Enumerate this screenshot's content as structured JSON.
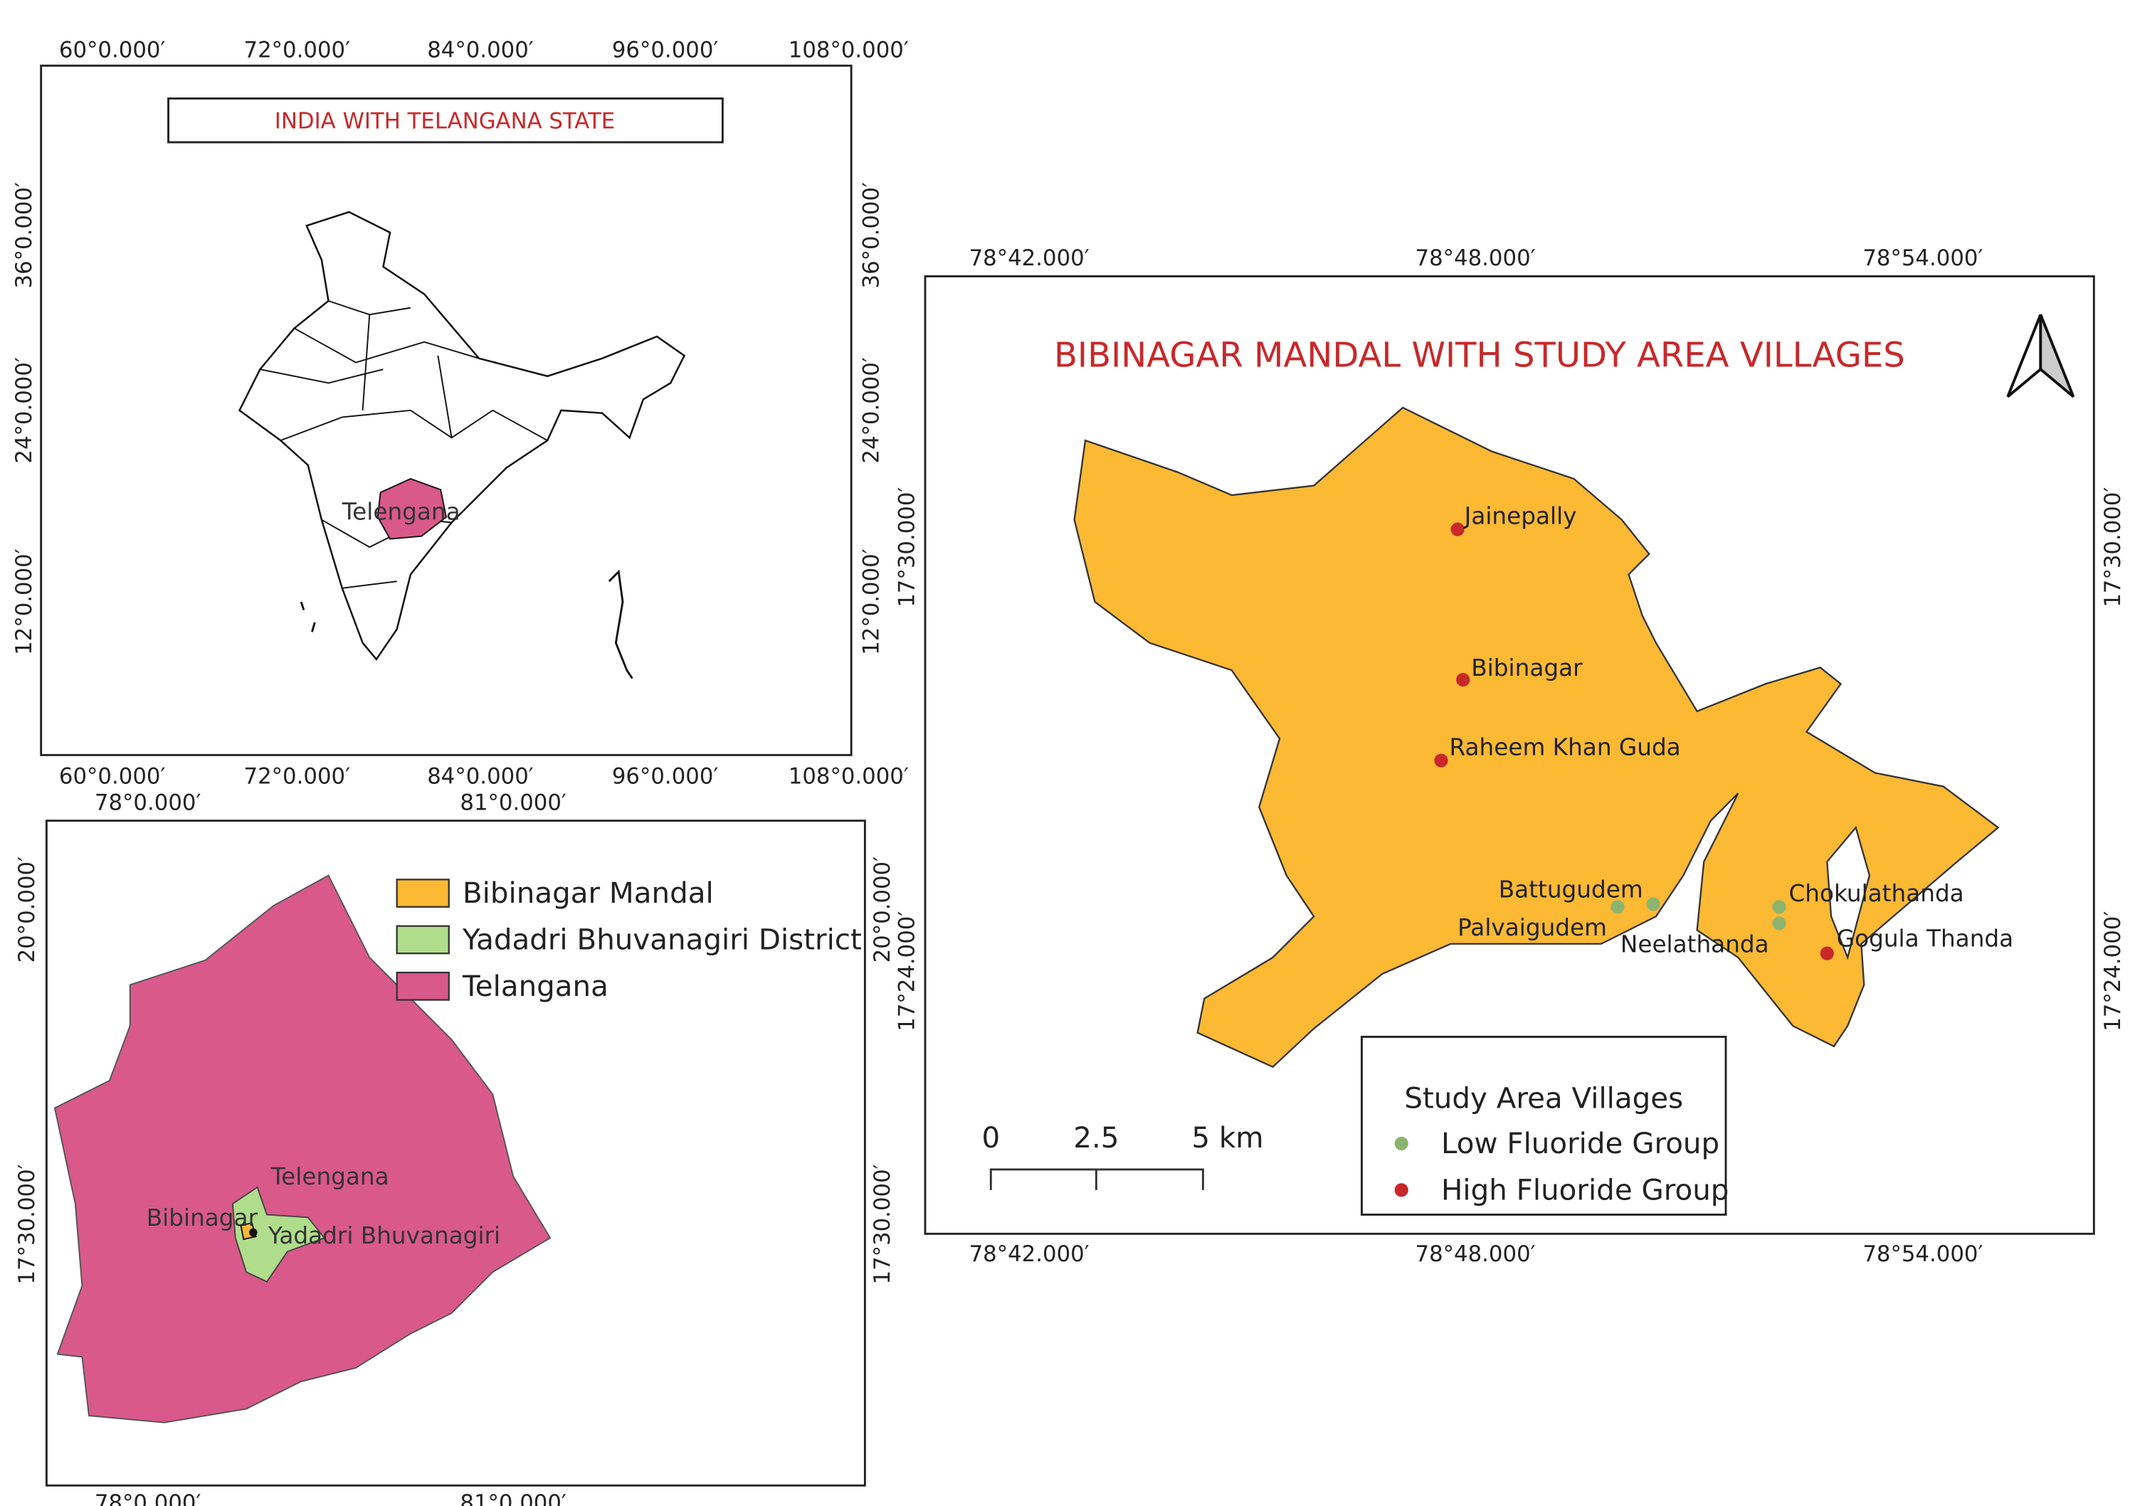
{
  "india_map": {
    "title": "INDIA WITH TELANGANA STATE",
    "longitudes": [
      "60°0.000′",
      "72°0.000′",
      "84°0.000′",
      "96°0.000′",
      "108°0.000′"
    ],
    "latitudes": [
      "36°0.000′",
      "24°0.000′",
      "12°0.000′"
    ],
    "state_label": "Telengana",
    "state_color": "#d9598a"
  },
  "telangana_map": {
    "longitudes": [
      "78°0.000′",
      "81°0.000′"
    ],
    "latitudes": [
      "20°0.000′",
      "17°30.000′"
    ],
    "labels": [
      "Telengana",
      "Bibinagar",
      "Yadadri Bhuvanagiri"
    ],
    "legend": [
      {
        "label": "Bibinagar Mandal",
        "color": "#fbb934"
      },
      {
        "label": "Yadadri Bhuvanagiri District",
        "color": "#b0dd8b"
      },
      {
        "label": "Telangana",
        "color": "#d9598a"
      }
    ]
  },
  "mandal_map": {
    "title": "BIBINAGAR MANDAL WITH STUDY AREA VILLAGES",
    "longitudes": [
      "78°42.000′",
      "78°48.000′",
      "78°54.000′"
    ],
    "latitudes": [
      "17°30.000′",
      "17°24.000′"
    ],
    "mandal_color": "#fbb934",
    "scale_bar": [
      "0",
      "2.5",
      "5 km"
    ],
    "legend": {
      "title": "Study Area Villages",
      "items": [
        {
          "label": "Low Fluoride Group",
          "color": "#8db46f",
          "villages": [
            "Battugudem",
            "Palvaigudem",
            "Chokulathanda",
            "Neelathanda"
          ]
        },
        {
          "label": "High Fluoride Group",
          "color": "#c8282a",
          "villages": [
            "Jainepally",
            "Bibinagar",
            "Raheem Khan Guda",
            "Gogula Thanda"
          ]
        }
      ]
    }
  }
}
